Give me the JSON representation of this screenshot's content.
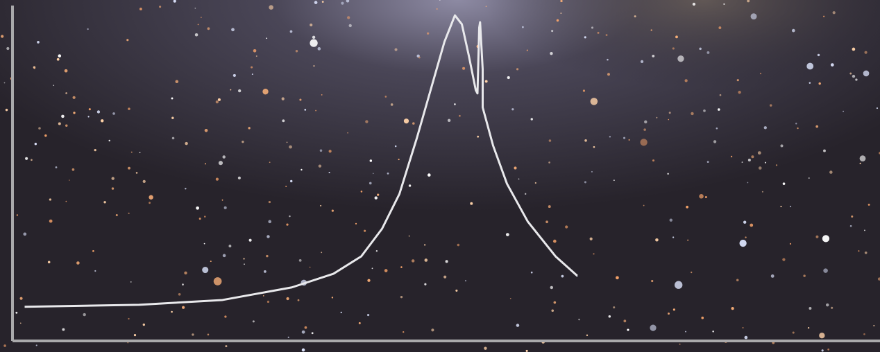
{
  "chart_data": {
    "type": "line",
    "x": [
      1.4,
      14.6,
      24.2,
      32.2,
      37.0,
      40.2,
      42.6,
      44.6,
      46.6,
      48.2,
      49.8,
      51.0,
      51.8,
      52.6,
      53.4,
      53.6,
      53.8,
      53.9,
      54.2,
      54.2,
      55.4,
      57.0,
      59.4,
      62.6,
      65.1
    ],
    "series": [
      {
        "color": "#e9e9ec",
        "values": [
          10.0,
          10.6,
          12.0,
          15.7,
          19.7,
          24.8,
          32.9,
          43.1,
          59.4,
          73.6,
          87.8,
          95.5,
          92.9,
          83.7,
          73.6,
          72.6,
          91.9,
          93.5,
          79.7,
          68.5,
          57.3,
          46.1,
          35.0,
          24.8,
          19.1
        ]
      }
    ],
    "xlim": [
      0,
      100
    ],
    "ylim": [
      0,
      100
    ],
    "grid": false,
    "axis_color": "#a9a9ab"
  }
}
